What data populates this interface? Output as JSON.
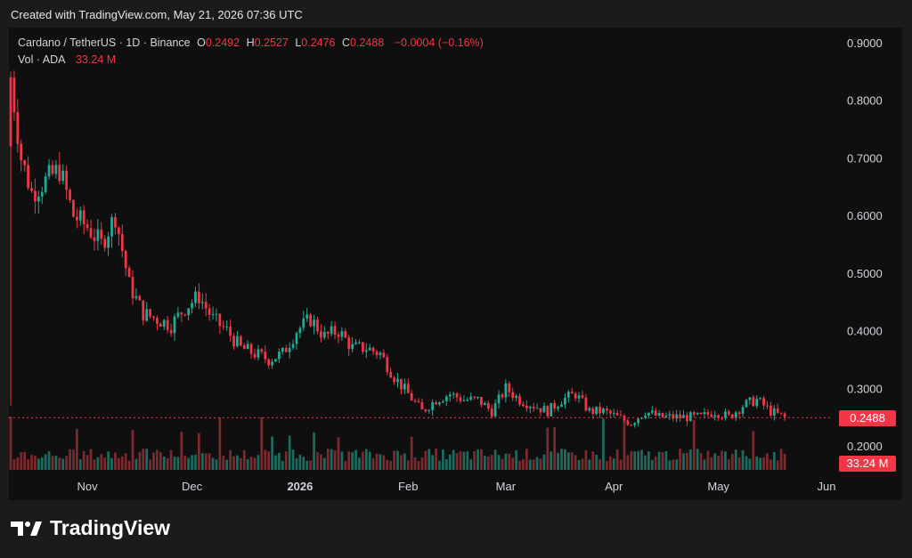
{
  "caption": "Created with TradingView.com, May 21, 2026 07:36 UTC",
  "legend": {
    "symbol": "Cardano / TetherUS · 1D · Binance",
    "open_label": "O",
    "open": "0.2492",
    "high_label": "H",
    "high": "0.2527",
    "low_label": "L",
    "low": "0.2476",
    "close_label": "C",
    "close": "0.2488",
    "change": "−0.0004 (−0.16%)",
    "vol_label": "Vol · ADA",
    "vol": "33.24 M"
  },
  "price_tag": "0.2488",
  "volume_tag": "33.24 M",
  "footer": {
    "brand": "TradingView",
    "logo_icon": "tradingview-logo-icon"
  },
  "colors": {
    "up": "#22ab94",
    "down": "#f23645",
    "up_vol": "#1d6b5e",
    "down_vol": "#7b2a2f",
    "background": "#0f0f0f"
  },
  "chart_data": {
    "type": "candlestick",
    "title": "Cardano / TetherUS · 1D · Binance",
    "y_axis": {
      "position": "right",
      "ticks": [
        "0.9000",
        "0.8000",
        "0.7000",
        "0.6000",
        "0.5000",
        "0.4000",
        "0.3000",
        "0.2000"
      ],
      "ylim": [
        0.15,
        0.93
      ]
    },
    "x_axis": {
      "ticks": [
        "Nov",
        "Dec",
        "2026",
        "Feb",
        "Mar",
        "Apr",
        "May",
        "Jun"
      ]
    },
    "grid": false,
    "last_price_line": 0.2488,
    "series": [
      {
        "name": "Cardano / TetherUS",
        "x": [
          "2025-10-10",
          "2025-10-13",
          "2025-10-16",
          "2025-10-20",
          "2025-10-24",
          "2025-10-28",
          "2025-11-01",
          "2025-11-05",
          "2025-11-09",
          "2025-11-13",
          "2025-11-17",
          "2025-11-21",
          "2025-11-25",
          "2025-11-29",
          "2025-12-03",
          "2025-12-07",
          "2025-12-11",
          "2025-12-15",
          "2025-12-19",
          "2025-12-23",
          "2025-12-27",
          "2025-12-31",
          "2026-01-04",
          "2026-01-08",
          "2026-01-12",
          "2026-01-16",
          "2026-01-20",
          "2026-01-24",
          "2026-01-28",
          "2026-02-01",
          "2026-02-05",
          "2026-02-09",
          "2026-02-13",
          "2026-02-17",
          "2026-02-21",
          "2026-02-25",
          "2026-03-01",
          "2026-03-05",
          "2026-03-09",
          "2026-03-13",
          "2026-03-17",
          "2026-03-21",
          "2026-03-25",
          "2026-03-29",
          "2026-04-02",
          "2026-04-06",
          "2026-04-10",
          "2026-04-14",
          "2026-04-18",
          "2026-04-22",
          "2026-04-26",
          "2026-04-30",
          "2026-05-04",
          "2026-05-08",
          "2026-05-12",
          "2026-05-16",
          "2026-05-20"
        ],
        "close": [
          0.84,
          0.7,
          0.64,
          0.66,
          0.68,
          0.6,
          0.58,
          0.55,
          0.6,
          0.48,
          0.43,
          0.42,
          0.41,
          0.44,
          0.46,
          0.42,
          0.4,
          0.37,
          0.36,
          0.35,
          0.36,
          0.4,
          0.42,
          0.39,
          0.4,
          0.37,
          0.37,
          0.36,
          0.32,
          0.29,
          0.26,
          0.28,
          0.29,
          0.28,
          0.28,
          0.26,
          0.3,
          0.28,
          0.27,
          0.26,
          0.28,
          0.29,
          0.26,
          0.26,
          0.25,
          0.24,
          0.26,
          0.25,
          0.25,
          0.25,
          0.25,
          0.26,
          0.25,
          0.27,
          0.28,
          0.26,
          0.249
        ]
      }
    ],
    "volume_series": {
      "name": "Vol · ADA",
      "last": "33.24 M"
    }
  }
}
